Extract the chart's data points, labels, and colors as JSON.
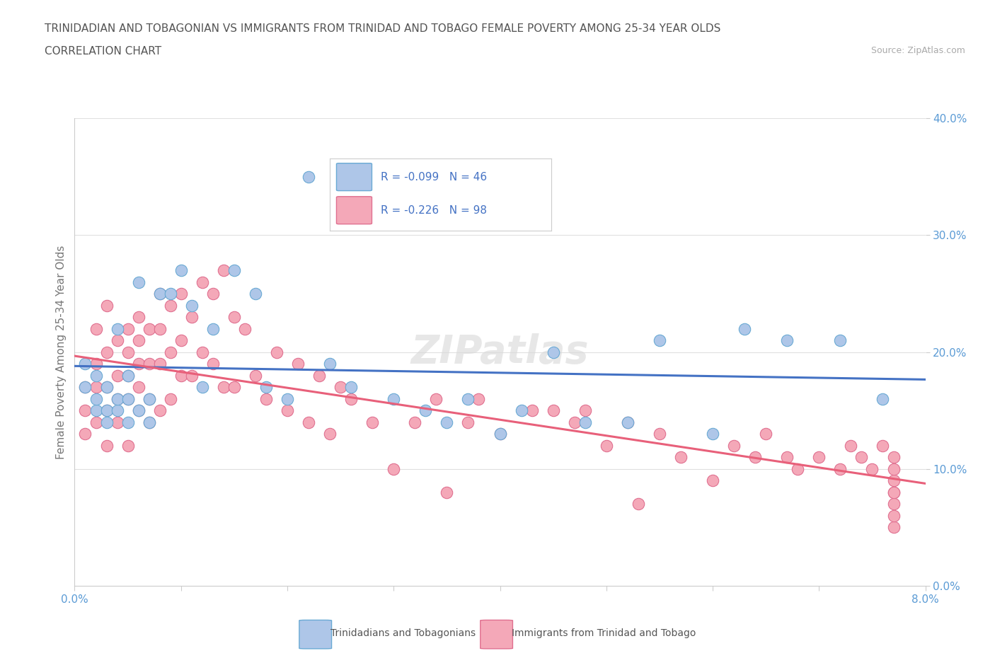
{
  "title_line1": "TRINIDADIAN AND TOBAGONIAN VS IMMIGRANTS FROM TRINIDAD AND TOBAGO FEMALE POVERTY AMONG 25-34 YEAR OLDS",
  "title_line2": "CORRELATION CHART",
  "source": "Source: ZipAtlas.com",
  "ylabel": "Female Poverty Among 25-34 Year Olds",
  "xlim": [
    0.0,
    0.08
  ],
  "ylim": [
    0.0,
    0.4
  ],
  "series1_label": "Trinidadians and Tobagonians",
  "series1_R": -0.099,
  "series1_N": 46,
  "series1_color": "#aec6e8",
  "series1_edge": "#6aaad4",
  "series2_label": "Immigrants from Trinidad and Tobago",
  "series2_R": -0.226,
  "series2_N": 98,
  "series2_color": "#f4a8b8",
  "series2_edge": "#e07090",
  "line1_color": "#4472c4",
  "line2_color": "#e8607a",
  "series1_x": [
    0.001,
    0.001,
    0.002,
    0.002,
    0.002,
    0.003,
    0.003,
    0.003,
    0.004,
    0.004,
    0.004,
    0.005,
    0.005,
    0.005,
    0.006,
    0.006,
    0.007,
    0.007,
    0.008,
    0.009,
    0.01,
    0.011,
    0.012,
    0.013,
    0.015,
    0.017,
    0.018,
    0.02,
    0.022,
    0.024,
    0.026,
    0.03,
    0.033,
    0.035,
    0.037,
    0.04,
    0.042,
    0.045,
    0.048,
    0.052,
    0.055,
    0.06,
    0.063,
    0.067,
    0.072,
    0.076
  ],
  "series1_y": [
    0.17,
    0.19,
    0.15,
    0.16,
    0.18,
    0.15,
    0.17,
    0.14,
    0.15,
    0.22,
    0.16,
    0.16,
    0.18,
    0.14,
    0.26,
    0.15,
    0.14,
    0.16,
    0.25,
    0.25,
    0.27,
    0.24,
    0.17,
    0.22,
    0.27,
    0.25,
    0.17,
    0.16,
    0.35,
    0.19,
    0.17,
    0.16,
    0.15,
    0.14,
    0.16,
    0.13,
    0.15,
    0.2,
    0.14,
    0.14,
    0.21,
    0.13,
    0.22,
    0.21,
    0.21,
    0.16
  ],
  "series2_x": [
    0.001,
    0.001,
    0.001,
    0.002,
    0.002,
    0.002,
    0.002,
    0.003,
    0.003,
    0.003,
    0.003,
    0.003,
    0.004,
    0.004,
    0.004,
    0.004,
    0.005,
    0.005,
    0.005,
    0.005,
    0.005,
    0.006,
    0.006,
    0.006,
    0.006,
    0.006,
    0.007,
    0.007,
    0.007,
    0.007,
    0.008,
    0.008,
    0.008,
    0.008,
    0.009,
    0.009,
    0.009,
    0.01,
    0.01,
    0.01,
    0.011,
    0.011,
    0.012,
    0.012,
    0.013,
    0.013,
    0.014,
    0.014,
    0.015,
    0.015,
    0.016,
    0.017,
    0.018,
    0.019,
    0.02,
    0.021,
    0.022,
    0.023,
    0.024,
    0.025,
    0.026,
    0.028,
    0.03,
    0.032,
    0.034,
    0.035,
    0.037,
    0.038,
    0.04,
    0.043,
    0.045,
    0.047,
    0.048,
    0.05,
    0.052,
    0.053,
    0.055,
    0.057,
    0.06,
    0.062,
    0.064,
    0.065,
    0.067,
    0.068,
    0.07,
    0.072,
    0.073,
    0.074,
    0.075,
    0.076,
    0.077,
    0.077,
    0.077,
    0.077,
    0.077,
    0.077,
    0.077,
    0.077
  ],
  "series2_y": [
    0.17,
    0.15,
    0.13,
    0.22,
    0.19,
    0.17,
    0.14,
    0.24,
    0.2,
    0.17,
    0.15,
    0.12,
    0.21,
    0.18,
    0.16,
    0.14,
    0.22,
    0.2,
    0.18,
    0.16,
    0.12,
    0.23,
    0.21,
    0.19,
    0.17,
    0.15,
    0.22,
    0.19,
    0.16,
    0.14,
    0.25,
    0.22,
    0.19,
    0.15,
    0.24,
    0.2,
    0.16,
    0.25,
    0.21,
    0.18,
    0.23,
    0.18,
    0.26,
    0.2,
    0.25,
    0.19,
    0.27,
    0.17,
    0.23,
    0.17,
    0.22,
    0.18,
    0.16,
    0.2,
    0.15,
    0.19,
    0.14,
    0.18,
    0.13,
    0.17,
    0.16,
    0.14,
    0.1,
    0.14,
    0.16,
    0.08,
    0.14,
    0.16,
    0.13,
    0.15,
    0.15,
    0.14,
    0.15,
    0.12,
    0.14,
    0.07,
    0.13,
    0.11,
    0.09,
    0.12,
    0.11,
    0.13,
    0.11,
    0.1,
    0.11,
    0.1,
    0.12,
    0.11,
    0.1,
    0.12,
    0.11,
    0.08,
    0.05,
    0.07,
    0.09,
    0.06,
    0.08,
    0.1
  ]
}
